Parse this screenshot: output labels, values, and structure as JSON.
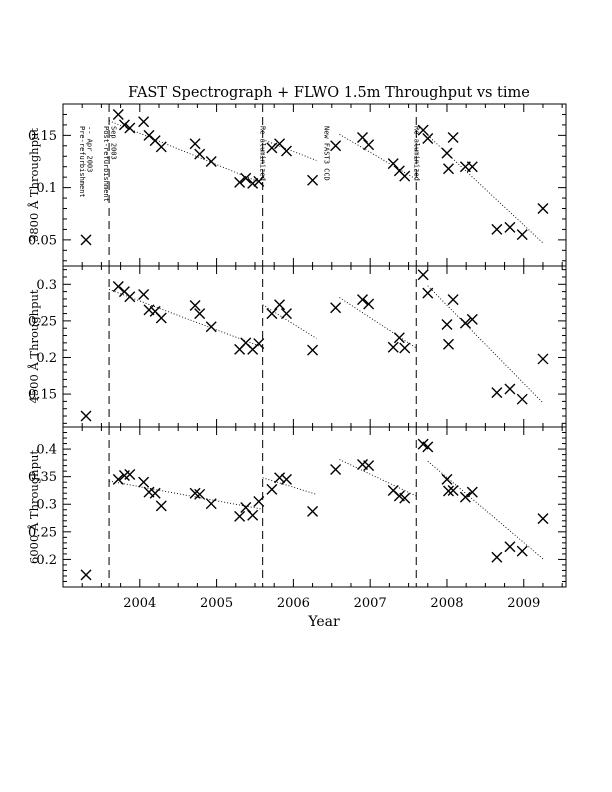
{
  "chart_data": {
    "type": "scatter",
    "title": "FAST Spectrograph + FLWO 1.5m Throughput vs time",
    "xlabel": "Year",
    "xlim": [
      2003.0,
      2009.55
    ],
    "xticks": [
      "2004",
      "2005",
      "2006",
      "2007",
      "2008",
      "2009"
    ],
    "grid": false,
    "events": [
      {
        "x": 2003.6,
        "lines": [
          "Post-refurbishment",
          "Sep 2003"
        ]
      },
      {
        "x": 2005.6,
        "lines": [
          "Re-aluminized"
        ]
      },
      {
        "x": 2007.6,
        "lines": [
          "Re-aluminized"
        ]
      }
    ],
    "note_lines": [
      "Pre-refurbishment",
      "-- Apr 2003"
    ],
    "note_x": 2003.3,
    "new_ccd_label": [
      "New FAST3 CCD"
    ],
    "new_ccd_x": 2006.3,
    "panels": [
      {
        "ylabel": "3800 Å Throughput",
        "ylim": [
          0.025,
          0.18
        ],
        "yticks": [
          "0.05",
          "0.1",
          "0.15"
        ],
        "ytick_values": [
          0.05,
          0.1,
          0.15
        ],
        "x": [
          2003.3,
          2003.72,
          2003.8,
          2003.87,
          2004.05,
          2004.12,
          2004.2,
          2004.28,
          2004.72,
          2004.78,
          2004.93,
          2005.3,
          2005.38,
          2005.47,
          2005.55,
          2005.72,
          2005.82,
          2005.91,
          2006.25,
          2006.55,
          2006.9,
          2006.98,
          2007.3,
          2007.38,
          2007.45,
          2007.69,
          2007.75,
          2008.0,
          2008.02,
          2008.08,
          2008.24,
          2008.33,
          2008.65,
          2008.82,
          2008.98,
          2009.25
        ],
        "y": [
          0.05,
          0.17,
          0.16,
          0.157,
          0.163,
          0.15,
          0.145,
          0.139,
          0.142,
          0.132,
          0.125,
          0.105,
          0.109,
          0.104,
          0.106,
          0.138,
          0.142,
          0.135,
          0.107,
          0.14,
          0.148,
          0.141,
          0.123,
          0.116,
          0.111,
          0.155,
          0.147,
          0.133,
          0.118,
          0.148,
          0.12,
          0.12,
          0.06,
          0.062,
          0.055,
          0.08
        ],
        "trends": [
          [
            2003.6,
            0.164,
            2005.6,
            0.104
          ],
          [
            2005.6,
            0.146,
            2006.3,
            0.126
          ],
          [
            2006.6,
            0.151,
            2007.6,
            0.108
          ],
          [
            2007.75,
            0.15,
            2009.25,
            0.047
          ]
        ]
      },
      {
        "ylabel": "4500 Å Throughput",
        "ylim": [
          0.105,
          0.325
        ],
        "yticks": [
          "0.15",
          "0.2",
          "0.25",
          "0.3"
        ],
        "ytick_values": [
          0.15,
          0.2,
          0.25,
          0.3
        ],
        "x": [
          2003.3,
          2003.72,
          2003.8,
          2003.87,
          2004.05,
          2004.12,
          2004.2,
          2004.28,
          2004.72,
          2004.78,
          2004.93,
          2005.3,
          2005.38,
          2005.47,
          2005.55,
          2005.72,
          2005.82,
          2005.91,
          2006.25,
          2006.55,
          2006.9,
          2006.98,
          2007.3,
          2007.38,
          2007.45,
          2007.69,
          2007.75,
          2008.0,
          2008.02,
          2008.08,
          2008.24,
          2008.33,
          2008.65,
          2008.82,
          2008.98,
          2009.25
        ],
        "y": [
          0.12,
          0.297,
          0.29,
          0.283,
          0.286,
          0.265,
          0.263,
          0.254,
          0.271,
          0.26,
          0.242,
          0.211,
          0.22,
          0.211,
          0.219,
          0.26,
          0.272,
          0.26,
          0.21,
          0.268,
          0.279,
          0.273,
          0.214,
          0.227,
          0.213,
          0.313,
          0.288,
          0.245,
          0.218,
          0.279,
          0.247,
          0.252,
          0.152,
          0.157,
          0.143,
          0.198
        ],
        "trends": [
          [
            2003.6,
            0.293,
            2005.6,
            0.214
          ],
          [
            2005.6,
            0.272,
            2006.3,
            0.226
          ],
          [
            2006.6,
            0.282,
            2007.6,
            0.213
          ],
          [
            2007.75,
            0.298,
            2009.25,
            0.138
          ]
        ]
      },
      {
        "ylabel": "6000 Å Throughput",
        "ylim": [
          0.15,
          0.44
        ],
        "yticks": [
          "0.2",
          "0.25",
          "0.3",
          "0.35",
          "0.4"
        ],
        "ytick_values": [
          0.2,
          0.25,
          0.3,
          0.35,
          0.4
        ],
        "x": [
          2003.3,
          2003.72,
          2003.8,
          2003.87,
          2004.05,
          2004.12,
          2004.2,
          2004.28,
          2004.72,
          2004.78,
          2004.93,
          2005.3,
          2005.38,
          2005.47,
          2005.55,
          2005.72,
          2005.82,
          2005.91,
          2006.25,
          2006.55,
          2006.9,
          2006.98,
          2007.3,
          2007.38,
          2007.45,
          2007.69,
          2007.75,
          2008.0,
          2008.02,
          2008.08,
          2008.24,
          2008.33,
          2008.65,
          2008.82,
          2008.98,
          2009.25
        ],
        "y": [
          0.172,
          0.345,
          0.352,
          0.354,
          0.34,
          0.322,
          0.32,
          0.297,
          0.32,
          0.318,
          0.301,
          0.278,
          0.294,
          0.28,
          0.305,
          0.327,
          0.348,
          0.345,
          0.287,
          0.363,
          0.372,
          0.37,
          0.325,
          0.315,
          0.311,
          0.409,
          0.404,
          0.345,
          0.324,
          0.325,
          0.313,
          0.322,
          0.204,
          0.223,
          0.215,
          0.274
        ],
        "trends": [
          [
            2003.6,
            0.342,
            2005.6,
            0.291
          ],
          [
            2005.6,
            0.348,
            2006.3,
            0.318
          ],
          [
            2006.6,
            0.381,
            2007.6,
            0.315
          ],
          [
            2007.75,
            0.378,
            2009.25,
            0.201
          ]
        ]
      }
    ]
  }
}
